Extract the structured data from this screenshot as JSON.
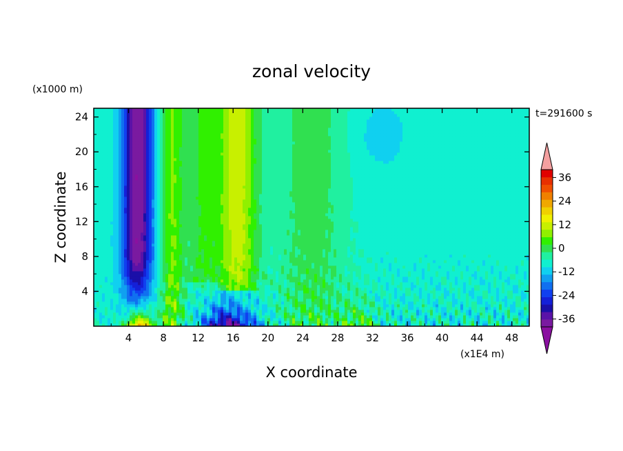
{
  "chart_data": {
    "type": "heatmap",
    "title": "zonal velocity",
    "xlabel": "X coordinate",
    "ylabel": "Z coordinate",
    "x_unit": "(x1E4 m)",
    "y_unit": "(x1000 m)",
    "time_label": "t=291600 s",
    "xlim": [
      0,
      50
    ],
    "ylim": [
      0,
      25
    ],
    "x_ticks": [
      4,
      8,
      12,
      16,
      20,
      24,
      28,
      32,
      36,
      40,
      44,
      48
    ],
    "x_tick_labels": [
      "4",
      "8",
      "12",
      "16",
      "20",
      "24",
      "28",
      "32",
      "36",
      "40",
      "44",
      "48"
    ],
    "y_ticks": [
      4,
      8,
      12,
      16,
      20,
      24
    ],
    "y_tick_labels": [
      "4",
      "8",
      "12",
      "16",
      "20",
      "24"
    ],
    "colorbar": {
      "levels": [
        -40,
        -36,
        -32,
        -28,
        -24,
        -20,
        -16,
        -12,
        -8,
        -4,
        0,
        4,
        8,
        12,
        16,
        20,
        24,
        28,
        32,
        36,
        40
      ],
      "labels": [
        "36",
        "24",
        "12",
        "0",
        "-12",
        "-24",
        "-36"
      ],
      "label_values": [
        36,
        24,
        12,
        0,
        -12,
        -24,
        -36
      ],
      "colors": [
        "#7a1aa0",
        "#5a12a8",
        "#1a0fa8",
        "#1420d8",
        "#1040f0",
        "#1070f0",
        "#10a0f0",
        "#10d0f0",
        "#10f0d0",
        "#20f0a0",
        "#30e050",
        "#30f000",
        "#90f000",
        "#c8f000",
        "#f0f000",
        "#f0d000",
        "#f0a800",
        "#f08000",
        "#f05000",
        "#e83000",
        "#e00000"
      ],
      "under_color": "#8a10a0",
      "over_color": "#f4a0a0"
    },
    "field_description": "Zonal velocity u(x,z), m/s. Strong negative jet near x=4-6 aloft (about -30), positive bands near x=9 and x=16 (about +15), positive near surface at x=5 (about +30), negative near surface at x=14-18 (about -30), small-scale turbulent fluctuations in the lowest 10 km, nearly uniform about -5 to -8 in the east."
  }
}
